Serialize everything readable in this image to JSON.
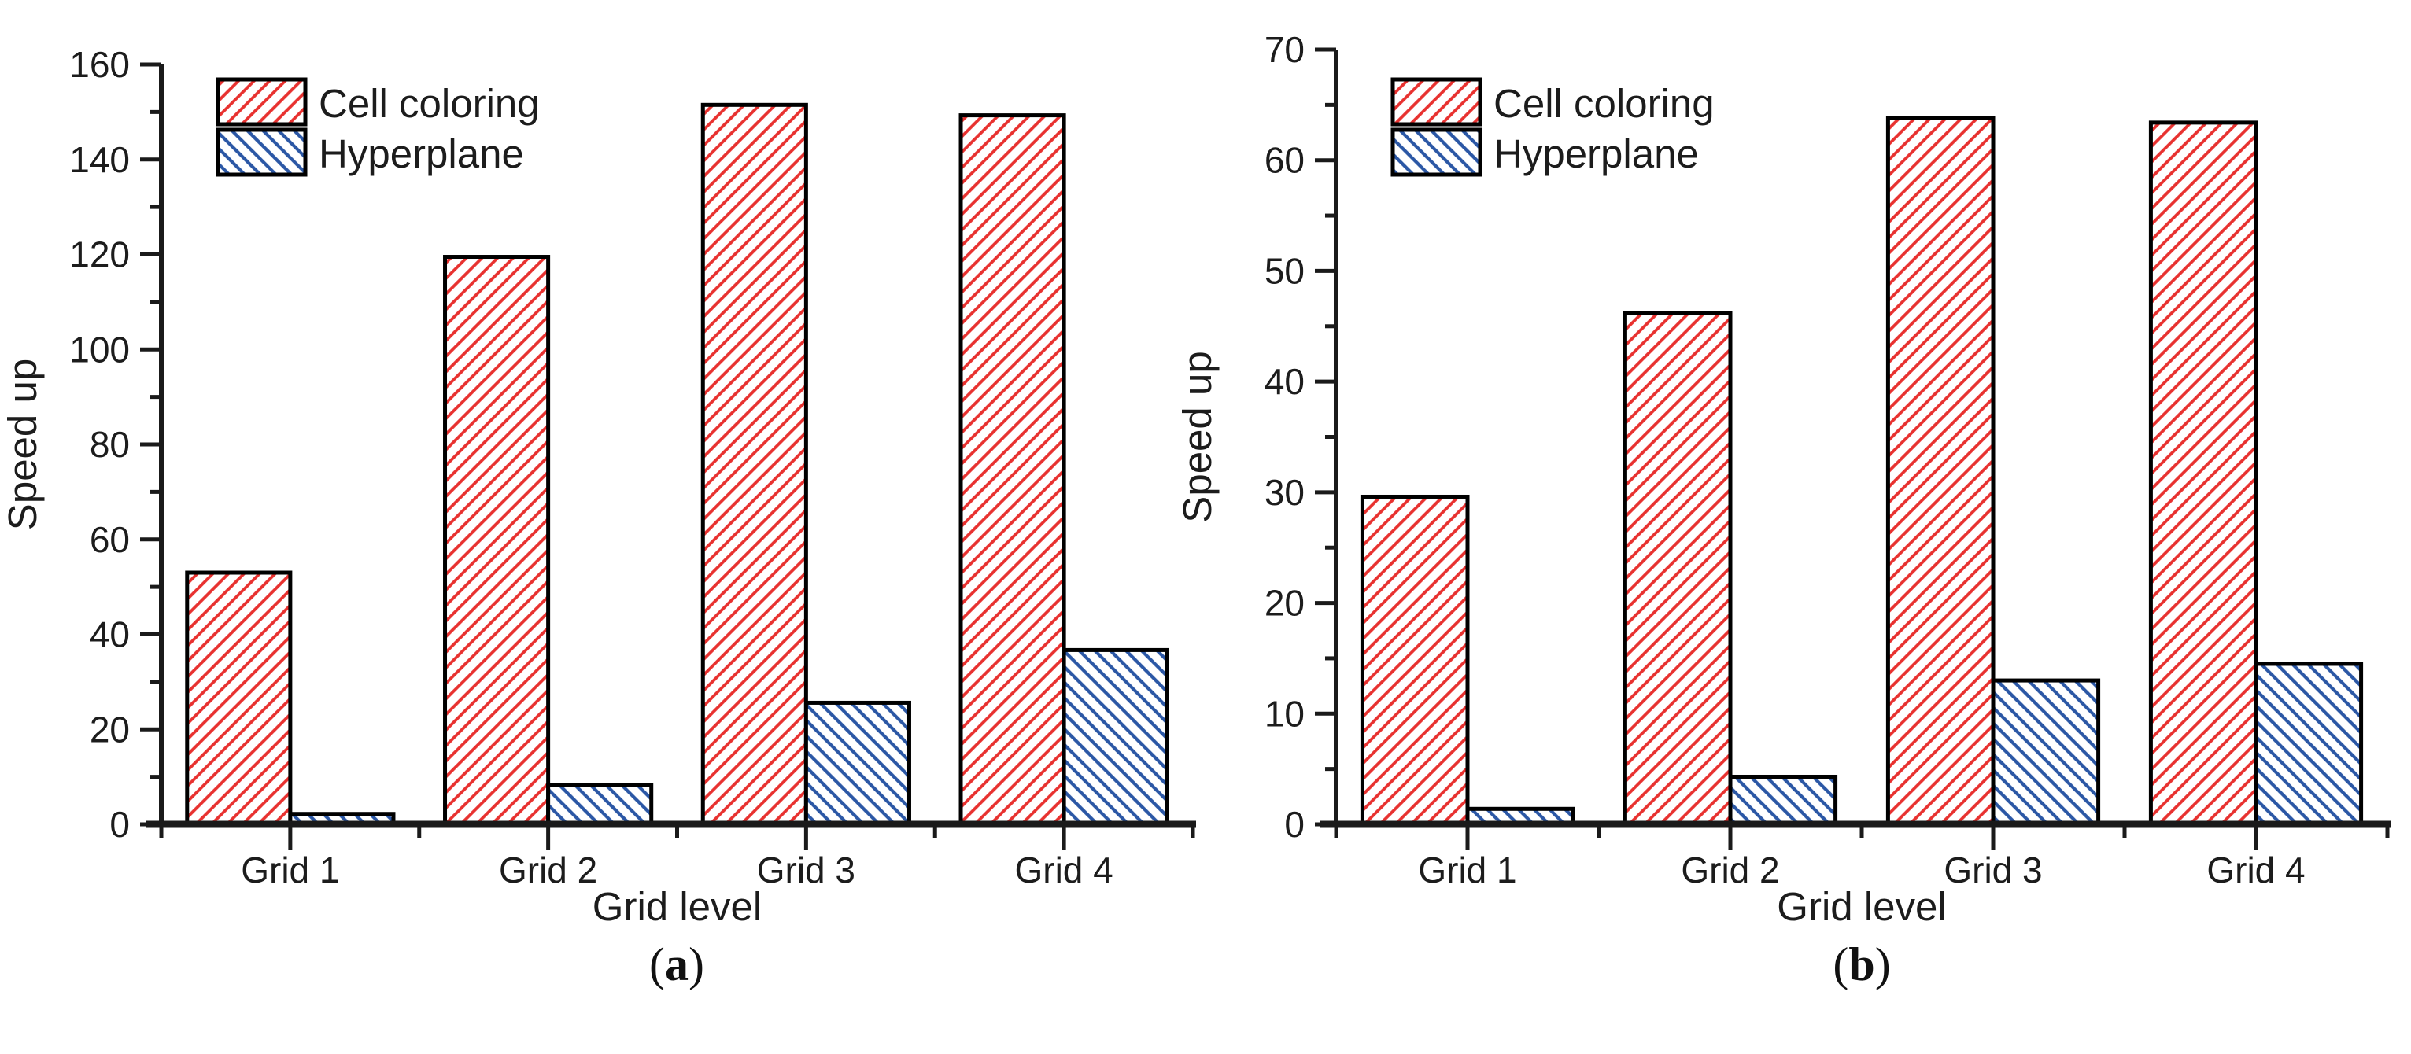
{
  "figure": {
    "captions": {
      "a": {
        "prefix": "(",
        "letter": "a",
        "suffix": ")"
      },
      "b": {
        "prefix": "(",
        "letter": "b",
        "suffix": ")"
      }
    }
  },
  "chart_data": [
    {
      "id": "a",
      "type": "bar",
      "title": "",
      "xlabel": "Grid level",
      "ylabel": "Speed up",
      "categories": [
        "Grid 1",
        "Grid 2",
        "Grid 3",
        "Grid 4"
      ],
      "series": [
        {
          "name": "Cell coloring",
          "values": [
            53.0,
            119.5,
            151.5,
            149.3
          ],
          "color": "#e8312f",
          "hatch": "/"
        },
        {
          "name": "Hyperplane",
          "values": [
            2.2,
            8.2,
            25.6,
            36.7
          ],
          "color": "#2b57a5",
          "hatch": "\\"
        }
      ],
      "ylim": [
        0,
        160
      ],
      "ytick_step": 20,
      "yminor_step": 10,
      "grid": false,
      "legend_position": "top-left"
    },
    {
      "id": "b",
      "type": "bar",
      "title": "",
      "xlabel": "Grid level",
      "ylabel": "Speed up",
      "categories": [
        "Grid 1",
        "Grid 2",
        "Grid 3",
        "Grid 4"
      ],
      "series": [
        {
          "name": "Cell coloring",
          "values": [
            29.6,
            46.2,
            63.8,
            63.4
          ],
          "color": "#e8312f",
          "hatch": "/"
        },
        {
          "name": "Hyperplane",
          "values": [
            1.4,
            4.3,
            13.0,
            14.5
          ],
          "color": "#2b57a5",
          "hatch": "\\"
        }
      ],
      "ylim": [
        0,
        70
      ],
      "ytick_step": 10,
      "yminor_step": 5,
      "grid": false,
      "legend_position": "top-left"
    }
  ]
}
